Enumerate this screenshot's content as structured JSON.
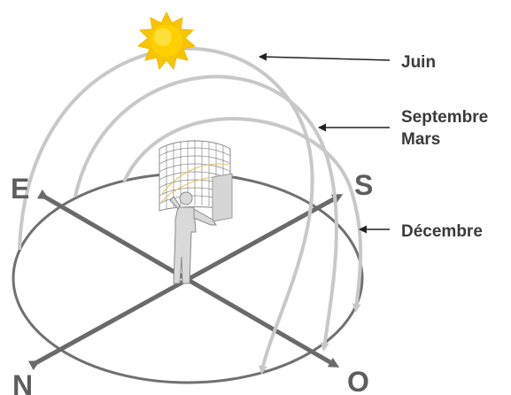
{
  "directions": {
    "east": "E",
    "south": "S",
    "north": "N",
    "west": "O"
  },
  "paths": {
    "june": "Juin",
    "equinox_1": "Septembre",
    "equinox_2": "Mars",
    "december": "Décembre"
  },
  "colors": {
    "arc": "#c8c8c8",
    "axis": "#6a6a6a",
    "ellipse": "#707070",
    "sun": "#ffd000",
    "sun_ray": "#f2b800",
    "label": "#3a3a3a",
    "figure": "#d9d9d9",
    "grid": "#888888",
    "grid_accent": "#e8c060"
  },
  "icons": {
    "sun": "sun-icon",
    "observer": "person-icon",
    "sky-grid": "sky-grid-icon"
  }
}
